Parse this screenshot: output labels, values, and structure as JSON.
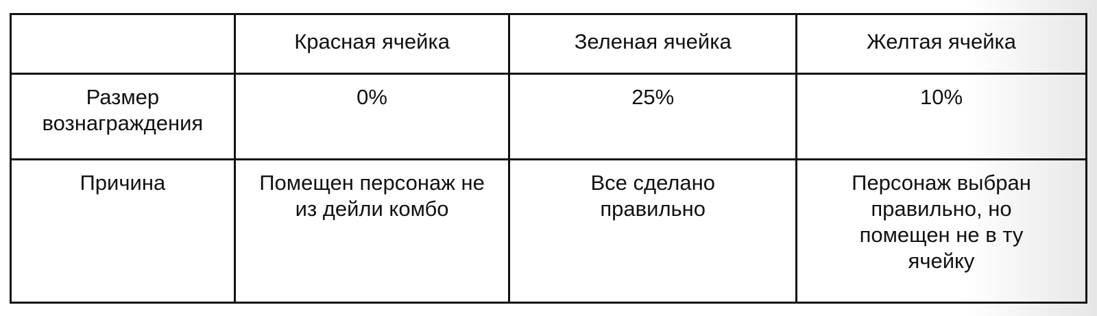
{
  "table": {
    "headers": [
      "",
      "Красная ячейка",
      "Зеленая ячейка",
      "Желтая ячейка"
    ],
    "rows": [
      {
        "label": "Размер вознаграждения",
        "cells": [
          "0%",
          "25%",
          "10%"
        ]
      },
      {
        "label": "Причина",
        "cells": [
          "Помещен персонаж не из дейли комбо",
          "Все сделано правильно",
          "Персонаж выбран правильно, но помещен не в ту ячейку"
        ]
      }
    ]
  }
}
